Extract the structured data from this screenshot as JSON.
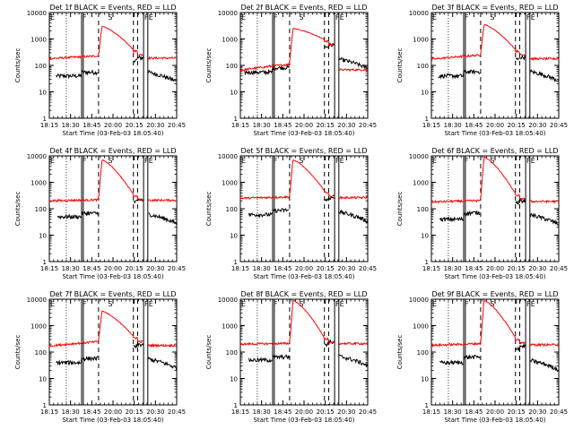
{
  "figure": {
    "xlabel": "Start Time (03-Feb-03 18:05:40)",
    "ylabel": "Counts/sec",
    "xticks": [
      "18:15",
      "18:30",
      "18:45",
      "20:00",
      "20:15",
      "20:30",
      "20:45"
    ],
    "yticks": [
      "1",
      "10",
      "100",
      "1000",
      "10000"
    ],
    "annotation_letters": [
      "E",
      "F",
      "S",
      "F",
      "E"
    ]
  },
  "chart_data": [
    {
      "type": "line",
      "title": "Det 1f BLACK = Events, RED = LLD",
      "ylim": [
        1,
        10000
      ],
      "xlim": [
        0,
        150
      ],
      "markers": {
        "dotted": [
          20
        ],
        "solid": [
          38,
          40,
          111,
          116
        ],
        "dashed": [
          58,
          99,
          104
        ]
      },
      "peak": {
        "x": [
          62,
          69
        ],
        "red_max": 3000,
        "red_end": 250,
        "black_end": 160
      },
      "series": [
        {
          "name": "Events",
          "color": "#000000",
          "level": 40,
          "rise": 55,
          "start": 8,
          "jump_x": 38,
          "jump_to": 55
        },
        {
          "name": "LLD",
          "color": "#ff0000",
          "level": 180,
          "rise": 260,
          "start": 0
        }
      ]
    },
    {
      "type": "line",
      "title": "Det 2f BLACK = Events, RED = LLD",
      "ylim": [
        1,
        10000
      ],
      "xlim": [
        0,
        150
      ],
      "markers": {
        "dotted": [
          20
        ],
        "solid": [
          38,
          40,
          111,
          116
        ],
        "dashed": [
          58,
          99,
          104
        ]
      },
      "peak": {
        "x": [
          62,
          69
        ],
        "red_max": 2500,
        "red_end": 600,
        "black_end": 500
      },
      "series": [
        {
          "name": "Events",
          "color": "#000000",
          "level": 55,
          "rise": 90,
          "start": 5,
          "jump_x": 38,
          "jump_to": 75
        },
        {
          "name": "LLD",
          "color": "#ff0000",
          "level": 65,
          "rise": 140,
          "start": 0
        }
      ]
    },
    {
      "type": "line",
      "title": "Det 3f BLACK = Events, RED = LLD",
      "ylim": [
        1,
        10000
      ],
      "xlim": [
        0,
        150
      ],
      "markers": {
        "dotted": [
          20
        ],
        "solid": [
          38,
          40,
          111,
          116
        ],
        "dashed": [
          58,
          99,
          104
        ]
      },
      "peak": {
        "x": [
          62,
          69
        ],
        "red_max": 3500,
        "red_end": 250,
        "black_end": 170
      },
      "series": [
        {
          "name": "Events",
          "color": "#000000",
          "level": 40,
          "rise": 60,
          "start": 8,
          "jump_x": 38,
          "jump_to": 55
        },
        {
          "name": "LLD",
          "color": "#ff0000",
          "level": 170,
          "rise": 300,
          "start": 0
        }
      ]
    },
    {
      "type": "line",
      "title": "Det 4f BLACK = Events, RED = LLD",
      "ylim": [
        1,
        10000
      ],
      "xlim": [
        0,
        150
      ],
      "markers": {
        "dotted": [
          20
        ],
        "solid": [
          38,
          40,
          111,
          116
        ],
        "dashed": [
          58,
          99,
          104
        ]
      },
      "peak": {
        "x": [
          62,
          69
        ],
        "red_max": 7000,
        "red_end": 220,
        "black_end": 180
      },
      "series": [
        {
          "name": "Events",
          "color": "#000000",
          "level": 50,
          "rise": 70,
          "start": 10,
          "jump_x": 38,
          "jump_to": 65
        },
        {
          "name": "LLD",
          "color": "#ff0000",
          "level": 200,
          "rise": 230,
          "start": 0
        }
      ]
    },
    {
      "type": "line",
      "title": "Det 5f BLACK = Events, RED = LLD",
      "ylim": [
        1,
        10000
      ],
      "xlim": [
        0,
        150
      ],
      "markers": {
        "dotted": [
          20
        ],
        "solid": [
          38,
          40,
          111,
          116
        ],
        "dashed": [
          58,
          99,
          104
        ]
      },
      "peak": {
        "x": [
          62,
          69
        ],
        "red_max": 7000,
        "red_end": 300,
        "black_end": 220
      },
      "series": [
        {
          "name": "Events",
          "color": "#000000",
          "level": 60,
          "rise": 100,
          "start": 10,
          "jump_x": 38,
          "jump_to": 75
        },
        {
          "name": "LLD",
          "color": "#ff0000",
          "level": 250,
          "rise": 300,
          "start": 0
        }
      ]
    },
    {
      "type": "line",
      "title": "Det 6f BLACK = Events, RED = LLD",
      "ylim": [
        1,
        10000
      ],
      "xlim": [
        0,
        150
      ],
      "markers": {
        "dotted": [
          20
        ],
        "solid": [
          38,
          40,
          111,
          116
        ],
        "dashed": [
          58,
          99,
          104
        ]
      },
      "peak": {
        "x": [
          62,
          69
        ],
        "red_max": 9000,
        "red_end": 230,
        "black_end": 170
      },
      "series": [
        {
          "name": "Events",
          "color": "#000000",
          "level": 40,
          "rise": 80,
          "start": 10,
          "jump_x": 38,
          "jump_to": 60
        },
        {
          "name": "LLD",
          "color": "#ff0000",
          "level": 180,
          "rise": 220,
          "start": 0
        }
      ]
    },
    {
      "type": "line",
      "title": "Det 7f BLACK = Events, RED = LLD",
      "ylim": [
        1,
        10000
      ],
      "xlim": [
        0,
        150
      ],
      "markers": {
        "dotted": [
          20
        ],
        "solid": [
          38,
          40,
          111,
          116
        ],
        "dashed": [
          58,
          99,
          104
        ]
      },
      "peak": {
        "x": [
          62,
          69
        ],
        "red_max": 3500,
        "red_end": 250,
        "black_end": 160
      },
      "series": [
        {
          "name": "Events",
          "color": "#000000",
          "level": 40,
          "rise": 60,
          "start": 8,
          "jump_x": 38,
          "jump_to": 55
        },
        {
          "name": "LLD",
          "color": "#ff0000",
          "level": 170,
          "rise": 300,
          "start": 0
        }
      ]
    },
    {
      "type": "line",
      "title": "Det 8f BLACK = Events, RED = LLD",
      "ylim": [
        1,
        10000
      ],
      "xlim": [
        0,
        150
      ],
      "markers": {
        "dotted": [
          20
        ],
        "solid": [
          38,
          40,
          111,
          116
        ],
        "dashed": [
          58,
          99,
          104
        ]
      },
      "peak": {
        "x": [
          62,
          69
        ],
        "red_max": 9000,
        "red_end": 220,
        "black_end": 200
      },
      "series": [
        {
          "name": "Events",
          "color": "#000000",
          "level": 50,
          "rise": 70,
          "start": 10,
          "jump_x": 38,
          "jump_to": 60
        },
        {
          "name": "LLD",
          "color": "#ff0000",
          "level": 200,
          "rise": 220,
          "start": 0
        }
      ]
    },
    {
      "type": "line",
      "title": "Det 9f BLACK = Events, RED = LLD",
      "ylim": [
        1,
        10000
      ],
      "xlim": [
        0,
        150
      ],
      "markers": {
        "dotted": [
          20
        ],
        "solid": [
          38,
          40,
          111,
          116
        ],
        "dashed": [
          58,
          99,
          104
        ]
      },
      "peak": {
        "x": [
          62,
          69
        ],
        "red_max": 9000,
        "red_end": 220,
        "black_end": 140
      },
      "series": [
        {
          "name": "Events",
          "color": "#000000",
          "level": 40,
          "rise": 70,
          "start": 10,
          "jump_x": 38,
          "jump_to": 60
        },
        {
          "name": "LLD",
          "color": "#ff0000",
          "level": 180,
          "rise": 230,
          "start": 0
        }
      ]
    }
  ]
}
